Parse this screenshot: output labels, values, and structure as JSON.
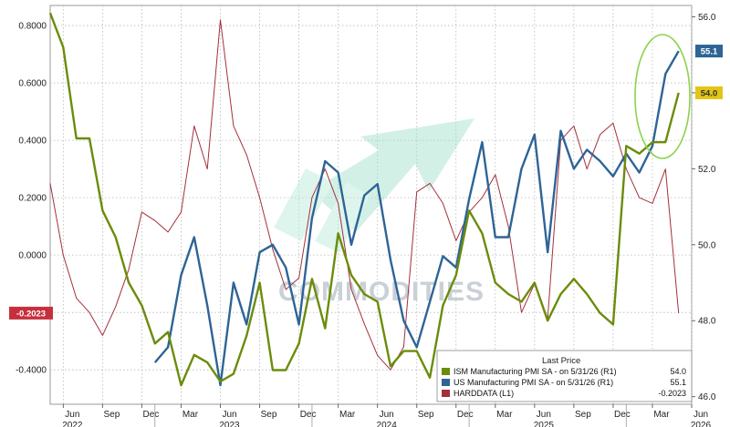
{
  "chart_data": {
    "type": "line",
    "title": "",
    "watermark": "COMMODITIES",
    "x_axis": {
      "month_labels": [
        "Jun",
        "Sep",
        "Dec",
        "Mar",
        "Jun",
        "Sep",
        "Dec",
        "Mar",
        "Jun",
        "Sep",
        "Dec",
        "Mar",
        "Jun",
        "Sep",
        "Dec",
        "Mar",
        "Jun"
      ],
      "year_labels": [
        "2022",
        "2023",
        "2024",
        "2025",
        "2026"
      ],
      "range": [
        "2022-05",
        "2026-06"
      ]
    },
    "y_left": {
      "ticks": [
        "0.8000",
        "0.6000",
        "0.4000",
        "0.2000",
        "0.0000",
        "-0.2000",
        "-0.4000"
      ],
      "range": [
        -0.52,
        0.87
      ]
    },
    "y_right": {
      "ticks": [
        "56.0",
        "54.0",
        "52.0",
        "50.0",
        "48.0",
        "46.0"
      ],
      "range": [
        45.8,
        56.3
      ]
    },
    "grid": true,
    "legend": {
      "title": "Last Price",
      "placement": "bottom-right",
      "entries": [
        {
          "label": "ISM Manufacturing PMI SA -  on 5/31/26  (R1)",
          "value": "54.0",
          "color": "#6b8c0a"
        },
        {
          "label": "US Manufacturing PMI SA -  on 5/31/26  (R1)",
          "value": "55.1",
          "color": "#2e6496"
        },
        {
          "label": "HARDDATA  (L1)",
          "value": "-0.2023",
          "color": "#a3303c"
        }
      ]
    },
    "last_value_tags": [
      {
        "text": "55.1",
        "series": "US Manufacturing PMI SA",
        "bg": "#2e6496",
        "fg": "#ffffff"
      },
      {
        "text": "54.0",
        "series": "ISM Manufacturing PMI SA",
        "bg": "#e3c615",
        "fg": "#333333"
      },
      {
        "text": "-0.2023",
        "series": "HARDDATA",
        "bg": "#c6303c",
        "fg": "#ffffff"
      }
    ],
    "series": [
      {
        "name": "ISM Manufacturing PMI SA",
        "axis": "right",
        "color": "#6b8c0a",
        "x": [
          "2022-05",
          "2022-06",
          "2022-07",
          "2022-08",
          "2022-09",
          "2022-10",
          "2022-11",
          "2022-12",
          "2023-01",
          "2023-02",
          "2023-03",
          "2023-04",
          "2023-05",
          "2023-06",
          "2023-07",
          "2023-08",
          "2023-09",
          "2023-10",
          "2023-11",
          "2023-12",
          "2024-01",
          "2024-02",
          "2024-03",
          "2024-04",
          "2024-05",
          "2024-06",
          "2024-07",
          "2024-08",
          "2024-09",
          "2024-10",
          "2024-11",
          "2024-12",
          "2025-01",
          "2025-02",
          "2025-03",
          "2025-04",
          "2025-05",
          "2025-06",
          "2025-07",
          "2025-08",
          "2025-09",
          "2025-10",
          "2025-11",
          "2025-12",
          "2026-01",
          "2026-02",
          "2026-03",
          "2026-04",
          "2026-05"
        ],
        "values": [
          56.1,
          55.2,
          52.8,
          52.8,
          50.9,
          50.2,
          49.0,
          48.4,
          47.4,
          47.7,
          46.3,
          47.1,
          46.9,
          46.4,
          46.6,
          47.6,
          49.0,
          46.7,
          46.7,
          47.4,
          49.1,
          47.8,
          50.3,
          49.2,
          48.7,
          48.5,
          46.8,
          47.2,
          47.2,
          46.5,
          48.4,
          49.2,
          50.9,
          50.3,
          49.0,
          48.7,
          48.5,
          49.0,
          48.0,
          48.7,
          49.1,
          48.7,
          48.2,
          47.9,
          52.6,
          52.4,
          52.7,
          52.7,
          54.0
        ]
      },
      {
        "name": "US Manufacturing PMI SA",
        "axis": "right",
        "color": "#2e6496",
        "x": [
          "2023-01",
          "2023-02",
          "2023-03",
          "2023-04",
          "2023-05",
          "2023-06",
          "2023-07",
          "2023-08",
          "2023-09",
          "2023-10",
          "2023-11",
          "2023-12",
          "2024-01",
          "2024-02",
          "2024-03",
          "2024-04",
          "2024-05",
          "2024-06",
          "2024-07",
          "2024-08",
          "2024-09",
          "2024-10",
          "2024-11",
          "2024-12",
          "2025-01",
          "2025-02",
          "2025-03",
          "2025-04",
          "2025-05",
          "2025-06",
          "2025-07",
          "2025-08",
          "2025-09",
          "2025-10",
          "2025-11",
          "2025-12",
          "2026-01",
          "2026-02",
          "2026-03",
          "2026-04",
          "2026-05"
        ],
        "values": [
          46.9,
          47.3,
          49.2,
          50.2,
          48.4,
          46.3,
          49.0,
          47.9,
          49.8,
          50.0,
          49.4,
          47.9,
          50.7,
          52.2,
          51.9,
          50.0,
          51.3,
          51.6,
          49.6,
          48.0,
          47.3,
          48.5,
          49.7,
          49.4,
          51.2,
          52.7,
          50.2,
          50.2,
          52.0,
          52.9,
          49.8,
          53.0,
          52.0,
          52.5,
          52.2,
          51.8,
          52.4,
          51.9,
          52.6,
          54.5,
          55.1
        ]
      },
      {
        "name": "HARDDATA",
        "axis": "left",
        "color": "#a3303c",
        "x": [
          "2022-05",
          "2022-06",
          "2022-07",
          "2022-08",
          "2022-09",
          "2022-10",
          "2022-11",
          "2022-12",
          "2023-01",
          "2023-02",
          "2023-03",
          "2023-04",
          "2023-05",
          "2023-06",
          "2023-07",
          "2023-08",
          "2023-09",
          "2023-10",
          "2023-11",
          "2023-12",
          "2024-01",
          "2024-02",
          "2024-03",
          "2024-04",
          "2024-05",
          "2024-06",
          "2024-07",
          "2024-08",
          "2024-09",
          "2024-10",
          "2024-11",
          "2024-12",
          "2025-01",
          "2025-02",
          "2025-03",
          "2025-04",
          "2025-05",
          "2025-06",
          "2025-07",
          "2025-08",
          "2025-09",
          "2025-10",
          "2025-11",
          "2025-12",
          "2026-01",
          "2026-02",
          "2026-03",
          "2026-04",
          "2026-05"
        ],
        "values": [
          0.25,
          0.0,
          -0.15,
          -0.2,
          -0.28,
          -0.18,
          -0.05,
          0.15,
          0.12,
          0.08,
          0.15,
          0.45,
          0.3,
          0.82,
          0.45,
          0.35,
          0.2,
          0.02,
          -0.12,
          -0.08,
          0.2,
          0.3,
          0.18,
          -0.12,
          -0.24,
          -0.35,
          -0.4,
          -0.32,
          0.22,
          0.25,
          0.18,
          0.05,
          0.15,
          0.2,
          0.28,
          0.1,
          -0.2,
          -0.1,
          -0.22,
          0.4,
          0.45,
          0.3,
          0.42,
          0.46,
          0.3,
          0.2,
          0.18,
          0.3,
          -0.2023
        ]
      }
    ]
  }
}
